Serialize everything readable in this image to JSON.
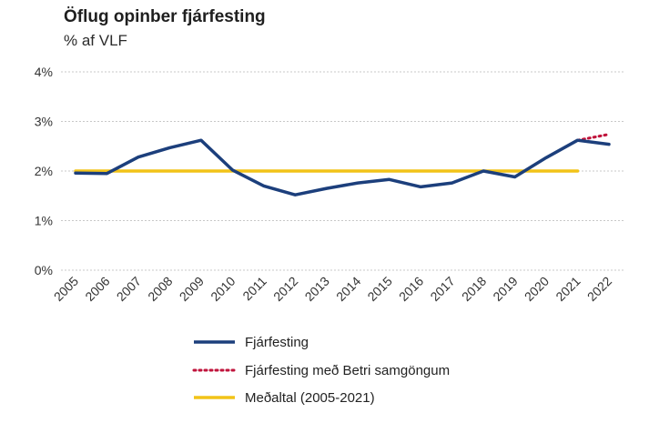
{
  "chart_data": {
    "type": "line",
    "title": "Öflug opinber fjárfesting",
    "subtitle": "% af VLF",
    "x": [
      "2005",
      "2006",
      "2007",
      "2008",
      "2009",
      "2010",
      "2011",
      "2012",
      "2013",
      "2014",
      "2015",
      "2016",
      "2017",
      "2018",
      "2019",
      "2020",
      "2021",
      "2022"
    ],
    "y_ticks": [
      "0%",
      "1%",
      "2%",
      "3%",
      "4%"
    ],
    "ylim": [
      0,
      4
    ],
    "grid": true,
    "legend_position": "bottom",
    "series": [
      {
        "name": "Fjárfesting",
        "color": "#1c3f7c",
        "style": "solid",
        "values": [
          1.96,
          1.95,
          2.28,
          2.47,
          2.62,
          2.02,
          1.7,
          1.52,
          1.65,
          1.76,
          1.83,
          1.68,
          1.76,
          2.0,
          1.88,
          2.27,
          2.62,
          2.54
        ]
      },
      {
        "name": "Fjárfesting með Betri samgöngum",
        "color": "#c0143c",
        "style": "dotted",
        "values": [
          null,
          null,
          null,
          null,
          null,
          null,
          null,
          null,
          null,
          null,
          null,
          null,
          null,
          null,
          null,
          null,
          2.62,
          2.74
        ]
      },
      {
        "name": "Meðaltal (2005-2021)",
        "color": "#f2c318",
        "style": "solid",
        "values": [
          2.0,
          2.0,
          2.0,
          2.0,
          2.0,
          2.0,
          2.0,
          2.0,
          2.0,
          2.0,
          2.0,
          2.0,
          2.0,
          2.0,
          2.0,
          2.0,
          2.0,
          null
        ]
      }
    ]
  }
}
